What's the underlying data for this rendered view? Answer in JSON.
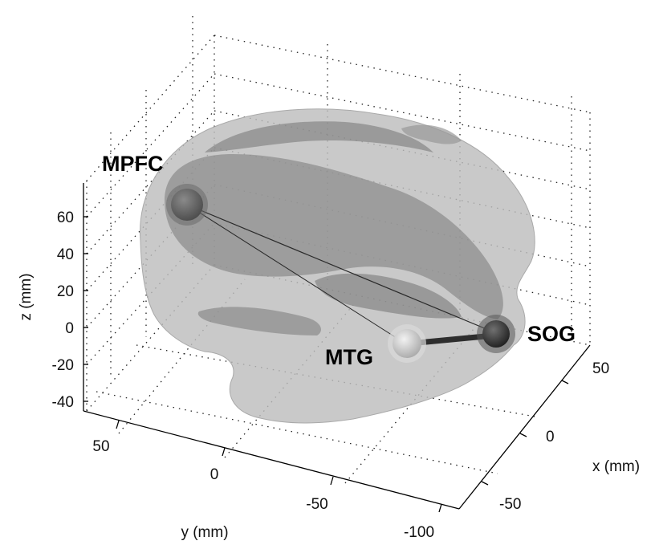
{
  "axes": {
    "x_label": "x (mm)",
    "y_label": "y (mm)",
    "z_label": "z (mm)",
    "x_ticks": [
      "50",
      "0",
      "-50"
    ],
    "y_ticks": [
      "50",
      "0",
      "-50",
      "-100"
    ],
    "z_ticks": [
      "60",
      "40",
      "20",
      "0",
      "-20",
      "-40"
    ],
    "grid": true
  },
  "regions": [
    {
      "id": "mpfc",
      "label": "MPFC"
    },
    {
      "id": "mtg",
      "label": "MTG"
    },
    {
      "id": "sog",
      "label": "SOG"
    }
  ],
  "connections": [
    {
      "from": "MPFC",
      "to": "SOG",
      "style": "thin"
    },
    {
      "from": "MPFC",
      "to": "MTG",
      "style": "thin"
    },
    {
      "from": "MTG",
      "to": "SOG",
      "style": "thick"
    }
  ],
  "colors": {
    "brain_surface": "#c4c4c4",
    "inner_structure": "#8f8f8f",
    "node_mpfc": "#5e5e5e",
    "node_mtg": "#cfcfcf",
    "node_sog": "#3c3c3c"
  }
}
